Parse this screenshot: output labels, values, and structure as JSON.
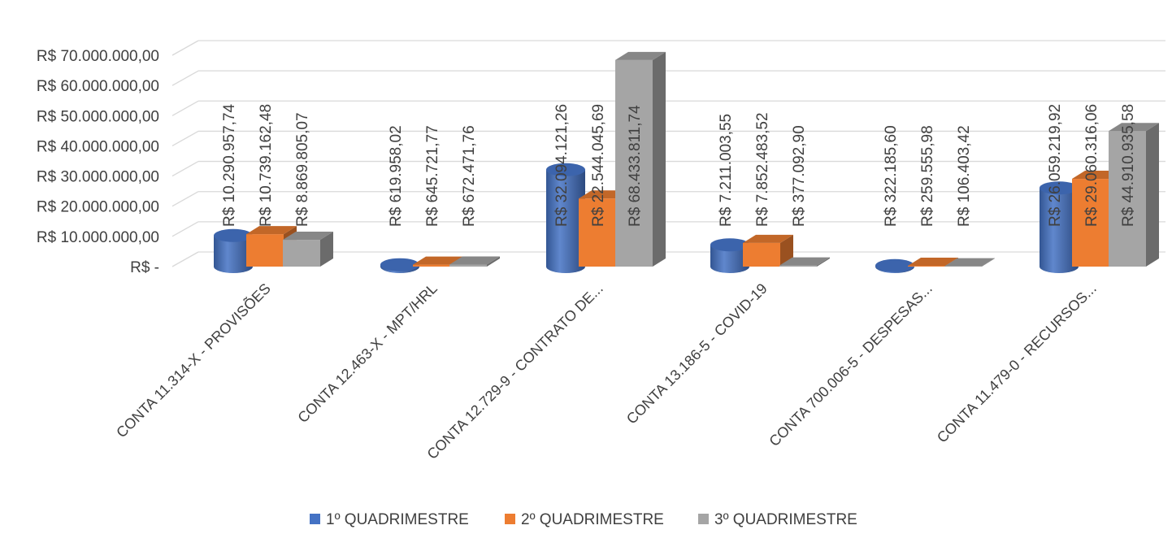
{
  "chart_data": {
    "type": "bar",
    "style": "3d-clustered (cylinder / box)",
    "categories": [
      "CONTA 11.314-X - PROVISÕES",
      "CONTA 12.463-X - MPT/HRL",
      "CONTA 12.729-9 - CONTRATO DE...",
      "CONTA 13.186-5 - COVID-19",
      "CONTA 700.006-5 - DESPESAS...",
      "CONTA 11.479-0 - RECURSOS..."
    ],
    "series": [
      {
        "name": "1º QUADRIMESTRE",
        "color": "#4472C4",
        "shape": "cylinder",
        "values": [
          10290957.74,
          619958.02,
          32094121.26,
          7211003.55,
          322185.6,
          26059219.92
        ],
        "labels": [
          "R$ 10.290.957,74",
          "R$ 619.958,02",
          "R$ 32.094.121,26",
          "R$ 7.211.003,55",
          "R$ 322.185,60",
          "R$ 26.059.219,92"
        ]
      },
      {
        "name": "2º QUADRIMESTRE",
        "color": "#ED7D31",
        "shape": "box",
        "values": [
          10739162.48,
          645721.77,
          22544045.69,
          7852483.52,
          259555.98,
          29060316.06
        ],
        "labels": [
          "R$ 10.739.162,48",
          "R$ 645.721,77",
          "R$ 22.544.045,69",
          "R$ 7.852.483,52",
          "R$ 259.555,98",
          "R$ 29.060.316,06"
        ]
      },
      {
        "name": "3º QUADRIMESTRE",
        "color": "#A5A5A5",
        "shape": "box",
        "values": [
          8869805.07,
          672471.76,
          68433811.74,
          377092.9,
          106403.42,
          44910935.58
        ],
        "labels": [
          "R$ 8.869.805,07",
          "R$ 672.471,76",
          "R$ 68.433.811,74",
          "R$ 377.092,90",
          "R$ 106.403,42",
          "R$ 44.910.935,58"
        ]
      }
    ],
    "ylim": [
      0,
      70000000
    ],
    "yticks": [
      0,
      10000000,
      20000000,
      30000000,
      40000000,
      50000000,
      60000000,
      70000000
    ],
    "ytick_labels": [
      "R$ -",
      "R$ 10.000.000,00",
      "R$ 20.000.000,00",
      "R$ 30.000.000,00",
      "R$ 40.000.000,00",
      "R$ 50.000.000,00",
      "R$ 60.000.000,00",
      "R$ 70.000.000,00"
    ],
    "title": "",
    "xlabel": "",
    "ylabel": "",
    "grid": true,
    "legend_position": "bottom"
  }
}
